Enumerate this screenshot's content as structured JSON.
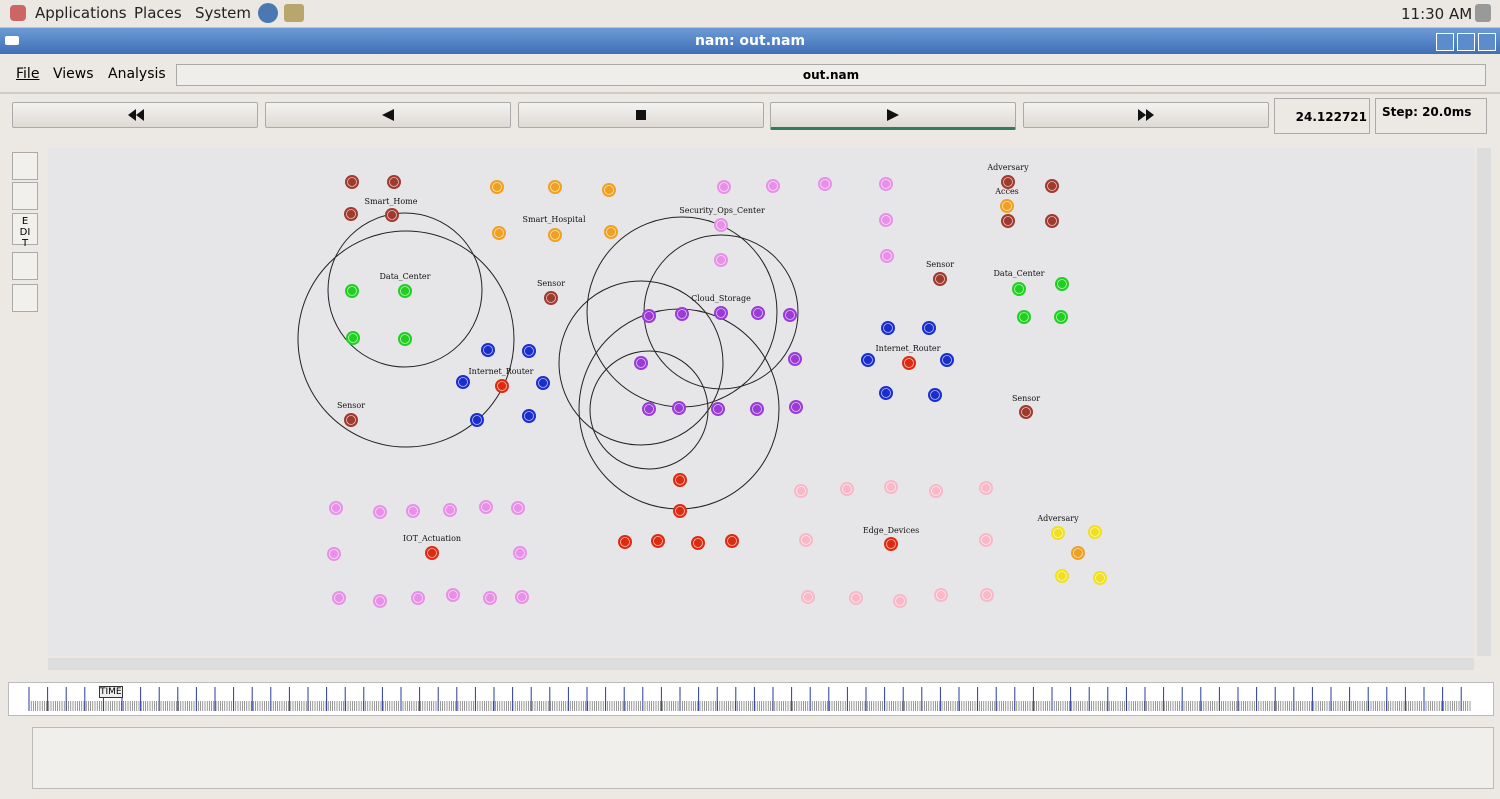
{
  "top_panel": {
    "menus": [
      "Applications",
      "Places",
      "System"
    ],
    "clock": "11:30 AM"
  },
  "window": {
    "title": "nam: out.nam"
  },
  "menu_bar": {
    "items": [
      "File",
      "Views",
      "Analysis"
    ],
    "file_name": "out.nam"
  },
  "controls": {
    "time": "24.122721",
    "step": "Step: 20.0ms"
  },
  "toolbar": {
    "edit": "EDIT"
  },
  "canvas": {
    "labels": [
      "Smart_Home",
      "Data_Center",
      "Smart_Hospital",
      "Sensor",
      "Sensor",
      "Internet_Router",
      "Security_Ops_Center",
      "Cloud_Storage",
      "Adversary",
      "Acces",
      "Sensor",
      "Data_Center",
      "Internet_Router",
      "Sensor",
      "Adversary",
      "IOT_Actuation",
      "Edge_Devices"
    ]
  },
  "timeline": {
    "label": "TIME"
  }
}
